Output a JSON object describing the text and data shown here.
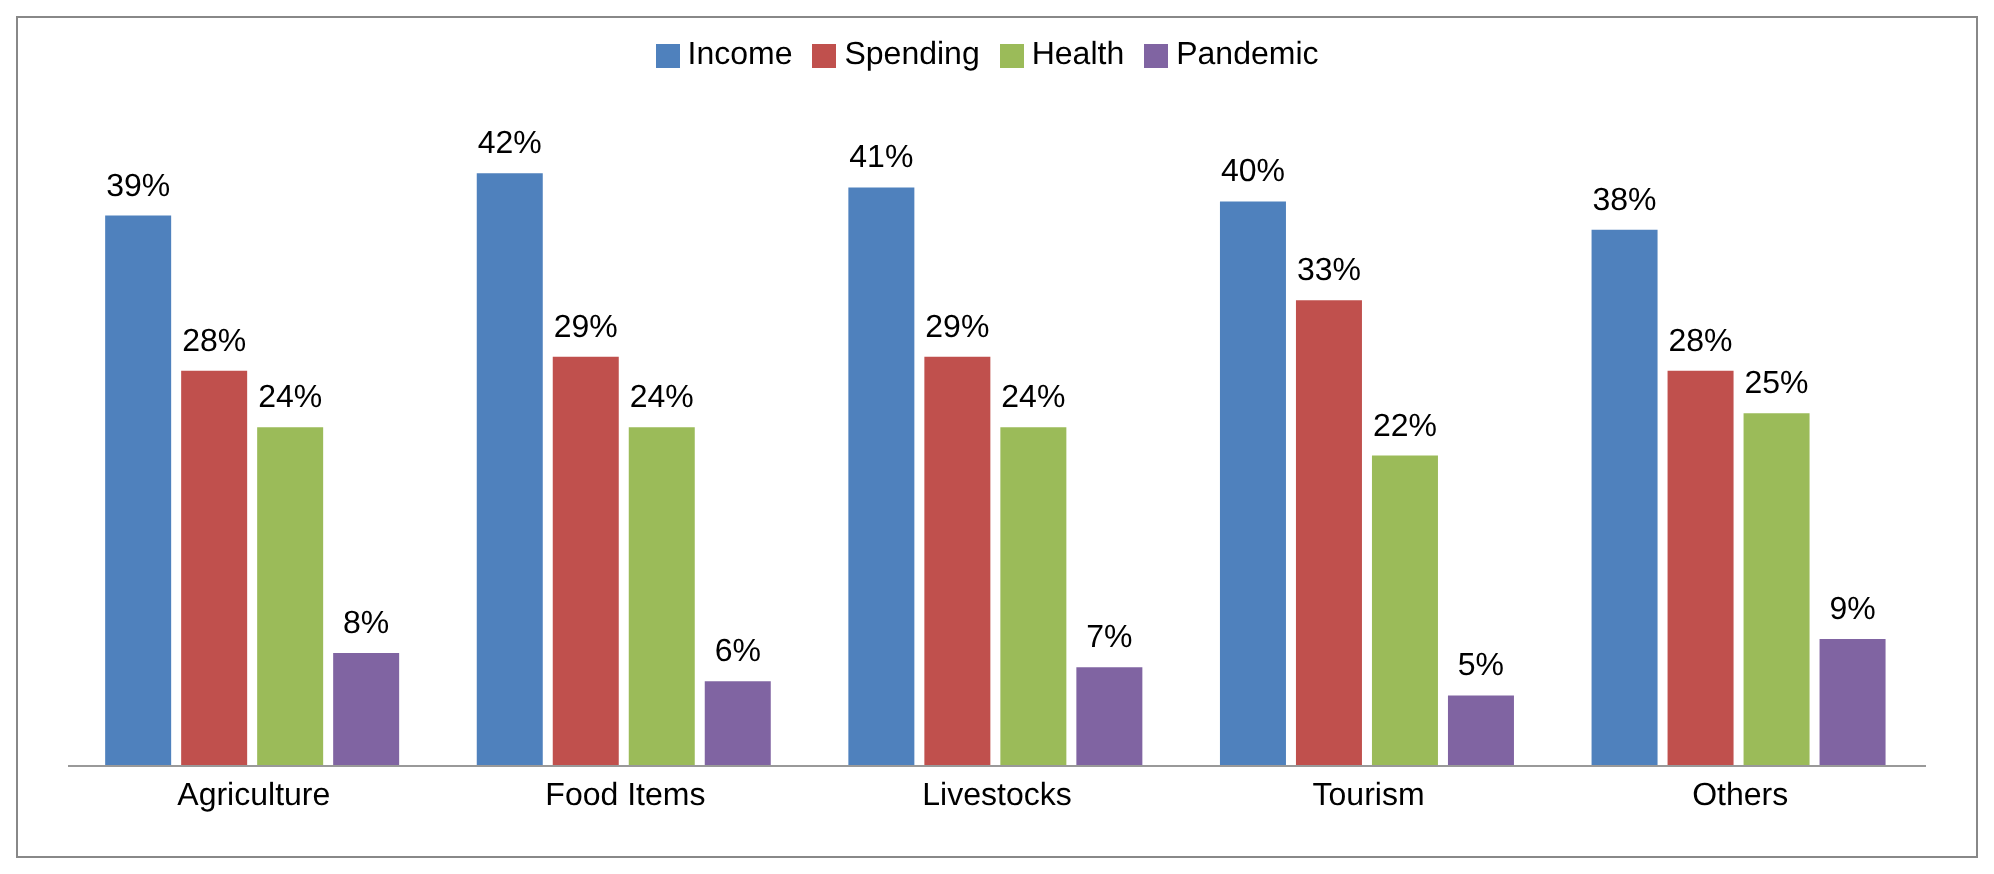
{
  "chart_data": {
    "type": "bar",
    "categories": [
      "Agriculture",
      "Food Items",
      "Livestocks",
      "Tourism",
      "Others"
    ],
    "series": [
      {
        "name": "Income",
        "color": "#4f81bd",
        "values": [
          39,
          42,
          41,
          40,
          38
        ],
        "value_labels": [
          "39%",
          "42%",
          "41%",
          "40%",
          "38%"
        ]
      },
      {
        "name": "Spending",
        "color": "#c0504d",
        "values": [
          28,
          29,
          29,
          33,
          28
        ],
        "value_labels": [
          "28%",
          "29%",
          "29%",
          "33%",
          "28%"
        ]
      },
      {
        "name": "Health",
        "color": "#9bbb59",
        "values": [
          24,
          24,
          24,
          22,
          25
        ],
        "value_labels": [
          "24%",
          "24%",
          "24%",
          "22%",
          "25%"
        ]
      },
      {
        "name": "Pandemic",
        "color": "#8064a2",
        "values": [
          8,
          6,
          7,
          5,
          9
        ],
        "value_labels": [
          "8%",
          "6%",
          "7%",
          "5%",
          "9%"
        ]
      }
    ],
    "legend": "top",
    "grid": false
  }
}
